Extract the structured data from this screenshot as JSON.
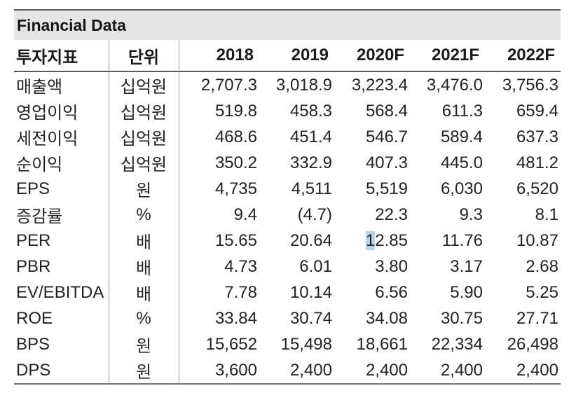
{
  "title": "Financial Data",
  "table": {
    "headers": [
      "투자지표",
      "단위",
      "2018",
      "2019",
      "2020F",
      "2021F",
      "2022F"
    ],
    "rows": [
      {
        "label": "매출액",
        "unit": "십억원",
        "values": [
          "2,707.3",
          "3,018.9",
          "3,223.4",
          "3,476.0",
          "3,756.3"
        ]
      },
      {
        "label": "영업이익",
        "unit": "십억원",
        "values": [
          "519.8",
          "458.3",
          "568.4",
          "611.3",
          "659.4"
        ]
      },
      {
        "label": "세전이익",
        "unit": "십억원",
        "values": [
          "468.6",
          "451.4",
          "546.7",
          "589.4",
          "637.3"
        ]
      },
      {
        "label": "순이익",
        "unit": "십억원",
        "values": [
          "350.2",
          "332.9",
          "407.3",
          "445.0",
          "481.2"
        ]
      },
      {
        "label": "EPS",
        "unit": "원",
        "values": [
          "4,735",
          "4,511",
          "5,519",
          "6,030",
          "6,520"
        ]
      },
      {
        "label": "증감률",
        "unit": "%",
        "values": [
          "9.4",
          "(4.7)",
          "22.3",
          "9.3",
          "8.1"
        ]
      },
      {
        "label": "PER",
        "unit": "배",
        "values": [
          "15.65",
          "20.64",
          "12.85",
          "11.76",
          "10.87"
        ]
      },
      {
        "label": "PBR",
        "unit": "배",
        "values": [
          "4.73",
          "6.01",
          "3.80",
          "3.17",
          "2.68"
        ]
      },
      {
        "label": "EV/EBITDA",
        "unit": "배",
        "values": [
          "7.78",
          "10.14",
          "6.56",
          "5.90",
          "5.25"
        ]
      },
      {
        "label": "ROE",
        "unit": "%",
        "values": [
          "33.84",
          "30.74",
          "34.08",
          "30.75",
          "27.71"
        ]
      },
      {
        "label": "BPS",
        "unit": "원",
        "values": [
          "15,652",
          "15,498",
          "18,661",
          "22,334",
          "26,498"
        ]
      },
      {
        "label": "DPS",
        "unit": "원",
        "values": [
          "3,600",
          "2,400",
          "2,400",
          "2,400",
          "2,400"
        ]
      }
    ],
    "selection_artifact": {
      "row_label": "PER",
      "column_header": "2020F",
      "highlighted_text": "1"
    }
  },
  "colors": {
    "title_band_bg": "#e5e5e6",
    "heavy_rule": "#565a5d",
    "light_rule": "#9b9b9b",
    "bottom_rule": "#6e7072",
    "text": "#222326",
    "selection_highlight": "#b5d7eb"
  }
}
